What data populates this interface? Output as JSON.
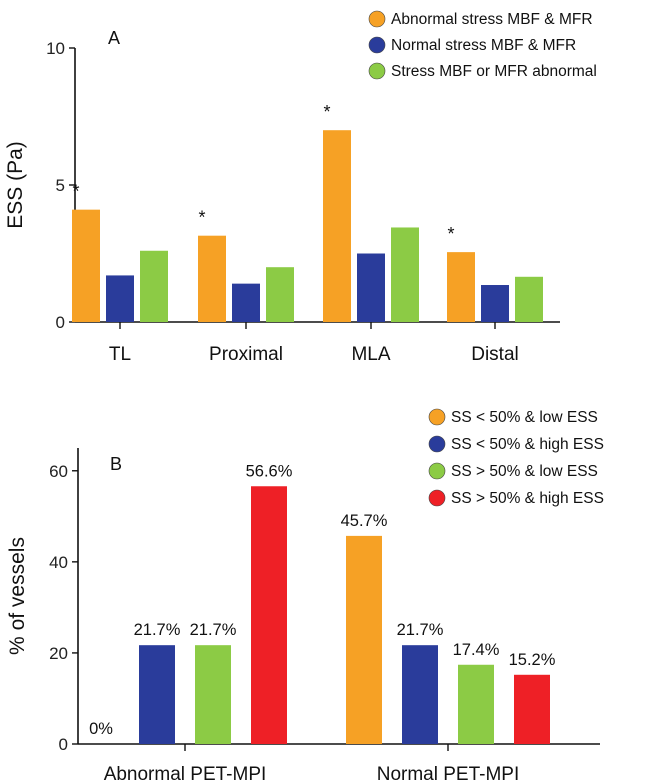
{
  "chart_data": [
    {
      "panel": "A",
      "type": "bar",
      "ylabel": "ESS (Pa)",
      "ylim": [
        0,
        10
      ],
      "yticks": [
        0,
        5,
        10
      ],
      "categories": [
        "TL",
        "Proximal",
        "MLA",
        "Distal"
      ],
      "series": [
        {
          "name": "Abnormal stress MBF & MFR",
          "color": "#F6A125",
          "values": [
            4.1,
            3.15,
            7.0,
            2.55
          ]
        },
        {
          "name": "Normal stress MBF & MFR",
          "color": "#2A3C9B",
          "values": [
            1.7,
            1.4,
            2.5,
            1.35
          ]
        },
        {
          "name": "Stress MBF or MFR abnormal",
          "color": "#8CCB45",
          "values": [
            2.6,
            2.0,
            3.45,
            1.65
          ]
        }
      ],
      "annotations": [
        "*",
        "*",
        "*",
        "*"
      ],
      "legend": "top-right",
      "grid": false
    },
    {
      "panel": "B",
      "type": "bar",
      "ylabel": "% of vessels",
      "ylim": [
        0,
        65
      ],
      "yticks": [
        0,
        20,
        40,
        60
      ],
      "categories": [
        "Abnormal PET-MPI",
        "Normal PET-MPI"
      ],
      "series": [
        {
          "name": "SS < 50% & low ESS",
          "color": "#F6A125",
          "values": [
            0,
            45.7
          ],
          "labels": [
            "0%",
            "45.7%"
          ]
        },
        {
          "name": "SS < 50% & high ESS",
          "color": "#2A3C9B",
          "values": [
            21.7,
            21.7
          ],
          "labels": [
            "21.7%",
            "21.7%"
          ]
        },
        {
          "name": "SS > 50% & low ESS",
          "color": "#8CCB45",
          "values": [
            21.7,
            17.4
          ],
          "labels": [
            "21.7%",
            "17.4%"
          ]
        },
        {
          "name": "SS > 50% & high ESS",
          "color": "#EE2026",
          "values": [
            56.6,
            15.2
          ],
          "labels": [
            "56.6%",
            "15.2%"
          ]
        }
      ],
      "legend": "top-right",
      "grid": false
    }
  ]
}
